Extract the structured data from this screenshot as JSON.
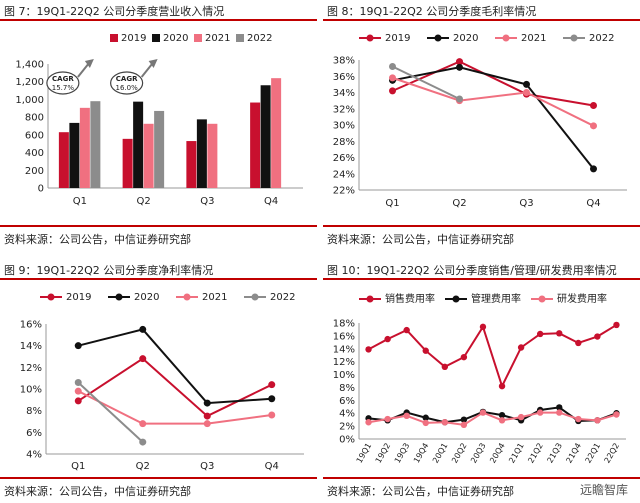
{
  "source_text": "资料来源：公司公告，中信证券研究部",
  "watermark_text": "远瞻智库",
  "colors": {
    "2019": "#c8102e",
    "2020": "#111111",
    "2021": "#f07080",
    "2022": "#8c8c8c"
  },
  "chart_data": [
    {
      "id": "fig7",
      "type": "bar",
      "title": "图 7：19Q1-22Q2 公司分季度营业收入情况",
      "categories": [
        "Q1",
        "Q2",
        "Q3",
        "Q4"
      ],
      "ylim": [
        0,
        1400
      ],
      "yticks": [
        0,
        200,
        400,
        600,
        800,
        1000,
        1200,
        1400
      ],
      "ytick_labels": [
        "0",
        "200",
        "400",
        "600",
        "800",
        "1,000",
        "1,200",
        "1,400"
      ],
      "series": [
        {
          "name": "2019",
          "values": [
            630,
            555,
            530,
            965
          ]
        },
        {
          "name": "2020",
          "values": [
            735,
            975,
            775,
            1160
          ]
        },
        {
          "name": "2021",
          "values": [
            905,
            725,
            725,
            1240
          ]
        },
        {
          "name": "2022",
          "values": [
            980,
            870,
            null,
            null
          ]
        }
      ],
      "annotations": [
        {
          "line1": "CAGR",
          "line2": "15.7%"
        },
        {
          "line1": "CAGR",
          "line2": "16.0%"
        }
      ]
    },
    {
      "id": "fig8",
      "type": "line",
      "title": "图 8：19Q1-22Q2 公司分季度毛利率情况",
      "categories": [
        "Q1",
        "Q2",
        "Q3",
        "Q4"
      ],
      "ylim": [
        22,
        38
      ],
      "yticks": [
        22,
        24,
        26,
        28,
        30,
        32,
        34,
        36,
        38
      ],
      "ytick_labels": [
        "22%",
        "24%",
        "26%",
        "28%",
        "30%",
        "32%",
        "34%",
        "36%",
        "38%"
      ],
      "series": [
        {
          "name": "2019",
          "values": [
            34.2,
            37.8,
            33.8,
            32.4
          ]
        },
        {
          "name": "2020",
          "values": [
            35.5,
            37.1,
            35.0,
            24.6
          ]
        },
        {
          "name": "2021",
          "values": [
            35.8,
            33.0,
            34.0,
            29.9
          ]
        },
        {
          "name": "2022",
          "values": [
            37.2,
            33.2,
            null,
            null
          ]
        }
      ]
    },
    {
      "id": "fig9",
      "type": "line",
      "title": "图 9：19Q1-22Q2 公司分季度净利率情况",
      "categories": [
        "Q1",
        "Q2",
        "Q3",
        "Q4"
      ],
      "ylim": [
        4,
        16
      ],
      "yticks": [
        4,
        6,
        8,
        10,
        12,
        14,
        16
      ],
      "ytick_labels": [
        "4%",
        "6%",
        "8%",
        "10%",
        "12%",
        "14%",
        "16%"
      ],
      "series": [
        {
          "name": "2019",
          "values": [
            8.9,
            12.8,
            7.5,
            10.4
          ]
        },
        {
          "name": "2020",
          "values": [
            14.0,
            15.5,
            8.7,
            9.1
          ]
        },
        {
          "name": "2021",
          "values": [
            9.8,
            6.8,
            6.8,
            7.6
          ]
        },
        {
          "name": "2022",
          "values": [
            10.6,
            5.1,
            null,
            null
          ]
        }
      ]
    },
    {
      "id": "fig10",
      "type": "line",
      "title": "图 10：19Q1-22Q2 公司分季度销售/管理/研发费用率情况",
      "categories": [
        "19Q1",
        "19Q2",
        "19Q3",
        "19Q4",
        "20Q1",
        "20Q2",
        "20Q3",
        "20Q4",
        "21Q1",
        "21Q2",
        "21Q3",
        "21Q4",
        "22Q1",
        "22Q2"
      ],
      "ylim": [
        0,
        18
      ],
      "yticks": [
        0,
        2,
        4,
        6,
        8,
        10,
        12,
        14,
        16,
        18
      ],
      "ytick_labels": [
        "0%",
        "2%",
        "4%",
        "6%",
        "8%",
        "10%",
        "12%",
        "14%",
        "16%",
        "18%"
      ],
      "series": [
        {
          "name": "销售费用率",
          "color": "#c8102e",
          "values": [
            13.9,
            15.5,
            16.9,
            13.7,
            11.2,
            12.7,
            17.4,
            8.2,
            14.2,
            16.3,
            16.4,
            14.9,
            15.9,
            17.7
          ]
        },
        {
          "name": "管理费用率",
          "color": "#111111",
          "values": [
            3.2,
            2.9,
            4.1,
            3.3,
            2.6,
            3.0,
            4.2,
            3.7,
            2.9,
            4.5,
            4.9,
            2.8,
            2.9,
            4.0
          ]
        },
        {
          "name": "研发费用率",
          "color": "#f07080",
          "values": [
            2.6,
            3.1,
            3.6,
            2.5,
            2.6,
            2.2,
            4.1,
            2.9,
            3.4,
            4.1,
            4.1,
            3.1,
            2.9,
            3.8
          ]
        }
      ]
    }
  ]
}
